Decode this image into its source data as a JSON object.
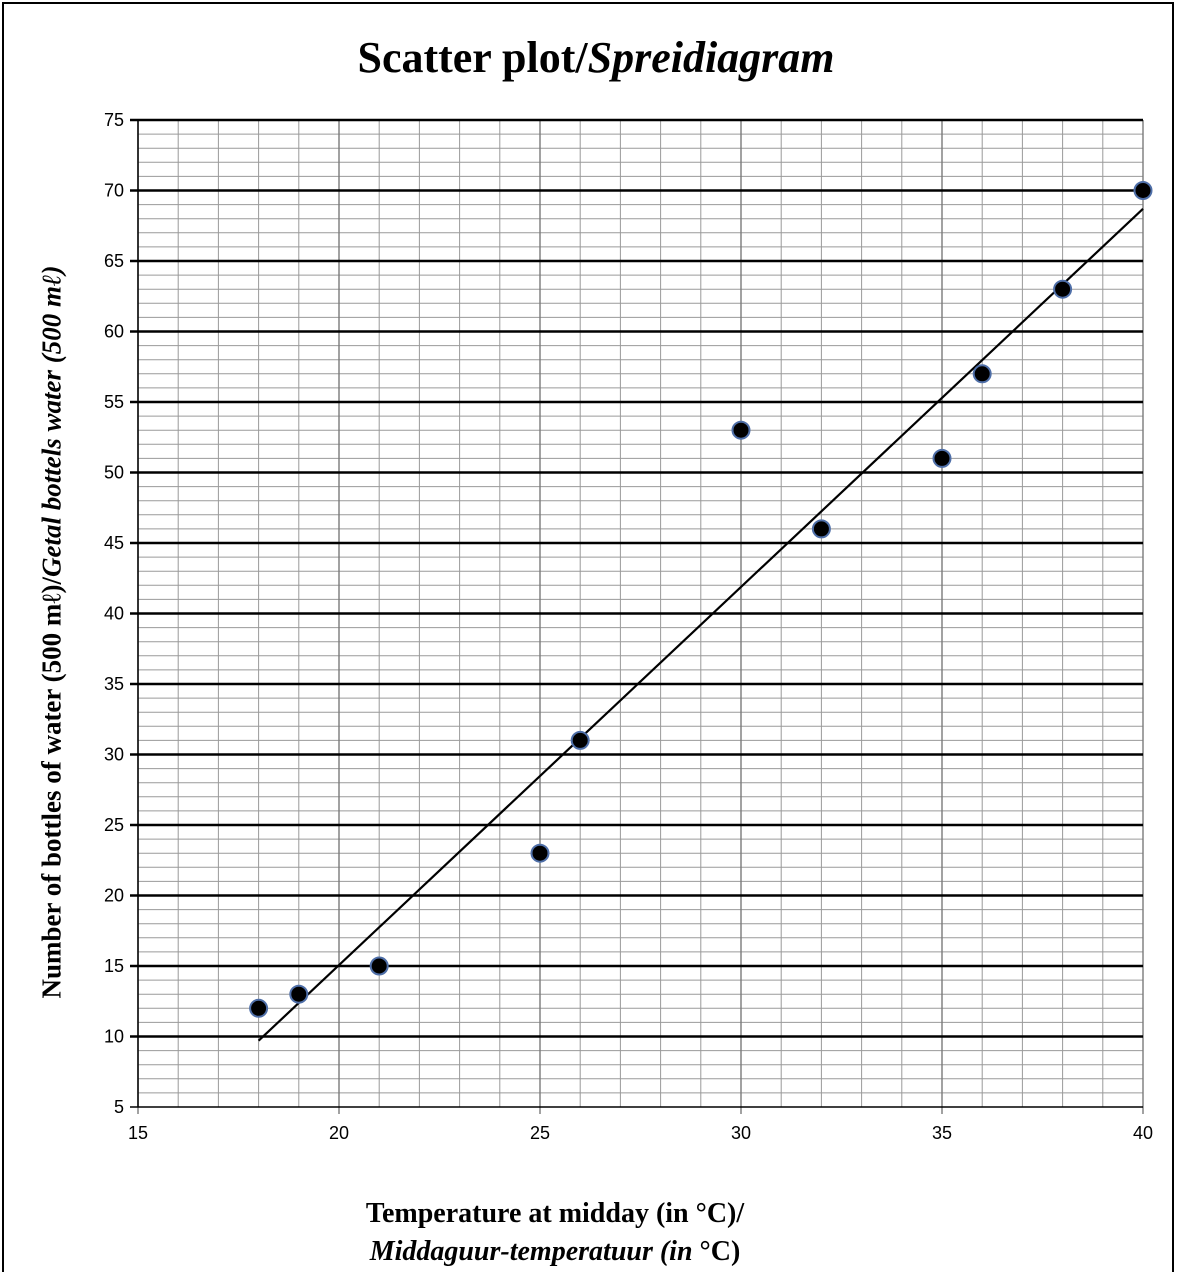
{
  "chart_data": {
    "type": "scatter",
    "title": {
      "main": "Scatter plot/",
      "italic": "Spreidiagram"
    },
    "ylabel": {
      "main": "Number of bottles of water (500 mℓ)/",
      "italic": "Getal bottels water (500 mℓ)"
    },
    "xlabel": {
      "line1": "Temperature at midday (in °C)/",
      "line2_italic": "Middaguur-temperatuur (in ",
      "line2_end": "°C)"
    },
    "xlim": [
      15,
      40
    ],
    "ylim": [
      5,
      75
    ],
    "x_ticks": [
      15,
      20,
      25,
      30,
      35,
      40
    ],
    "y_ticks": [
      5,
      10,
      15,
      20,
      25,
      30,
      35,
      40,
      45,
      50,
      55,
      60,
      65,
      70,
      75
    ],
    "grid": {
      "x_minor_step": 1,
      "y_minor_step": 1,
      "y_major_step": 5
    },
    "points": [
      {
        "x": 18,
        "y": 12
      },
      {
        "x": 19,
        "y": 13
      },
      {
        "x": 21,
        "y": 15
      },
      {
        "x": 25,
        "y": 23
      },
      {
        "x": 26,
        "y": 31
      },
      {
        "x": 30,
        "y": 53
      },
      {
        "x": 32,
        "y": 46
      },
      {
        "x": 35,
        "y": 51
      },
      {
        "x": 36,
        "y": 57
      },
      {
        "x": 38,
        "y": 63
      },
      {
        "x": 40,
        "y": 70
      }
    ],
    "trendline": {
      "x1": 18,
      "y1": 9.7,
      "x2": 40,
      "y2": 68.7
    },
    "colors": {
      "point_fill": "#000000",
      "point_stroke": "#4f6fa8",
      "major_grid": "#000000",
      "minor_grid": "#9a9a9a",
      "trendline": "#000000"
    }
  }
}
